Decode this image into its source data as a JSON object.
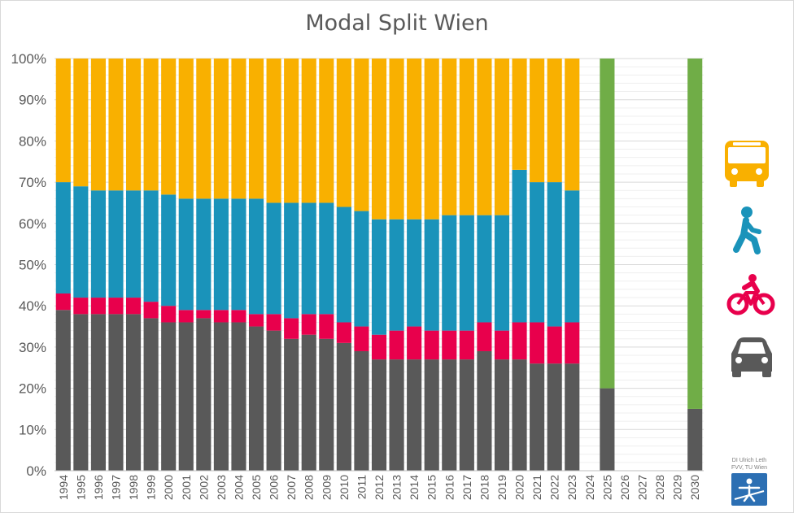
{
  "chart_data": {
    "type": "bar",
    "stacked": true,
    "title": "Modal Split Wien",
    "xlabel": "",
    "ylabel": "",
    "ylim": [
      0,
      100
    ],
    "yticks": [
      "0%",
      "10%",
      "20%",
      "30%",
      "40%",
      "50%",
      "60%",
      "70%",
      "80%",
      "90%",
      "100%"
    ],
    "grid": true,
    "legend": "right (icons)",
    "categories": [
      "1994",
      "1995",
      "1996",
      "1997",
      "1998",
      "1999",
      "2000",
      "2001",
      "2002",
      "2003",
      "2004",
      "2005",
      "2006",
      "2007",
      "2008",
      "2009",
      "2010",
      "2011",
      "2012",
      "2013",
      "2014",
      "2015",
      "2016",
      "2017",
      "2018",
      "2019",
      "2020",
      "2021",
      "2022",
      "2023",
      "2024",
      "2025",
      "2026",
      "2027",
      "2028",
      "2029",
      "2030"
    ],
    "series": [
      {
        "icon": "car-icon",
        "color": "#595959",
        "values": [
          39,
          38,
          38,
          38,
          38,
          37,
          36,
          36,
          37,
          36,
          36,
          35,
          34,
          32,
          33,
          32,
          31,
          29,
          27,
          27,
          27,
          27,
          27,
          27,
          29,
          27,
          27,
          26,
          26,
          26,
          null,
          20,
          null,
          null,
          null,
          null,
          15
        ]
      },
      {
        "icon": "bicycle-icon",
        "color": "#e8004c",
        "values": [
          4,
          4,
          4,
          4,
          4,
          4,
          4,
          3,
          2,
          3,
          3,
          3,
          4,
          5,
          5,
          6,
          5,
          6,
          6,
          7,
          8,
          7,
          7,
          7,
          7,
          7,
          9,
          10,
          9,
          10,
          null,
          null,
          null,
          null,
          null,
          null,
          null
        ]
      },
      {
        "icon": "pedestrian-icon",
        "color": "#1a93ba",
        "values": [
          27,
          27,
          26,
          26,
          26,
          27,
          27,
          27,
          27,
          27,
          27,
          28,
          27,
          28,
          27,
          27,
          28,
          28,
          28,
          27,
          26,
          27,
          28,
          28,
          26,
          28,
          37,
          34,
          35,
          32,
          null,
          null,
          null,
          null,
          null,
          null,
          null
        ]
      },
      {
        "icon": "bus-icon",
        "color": "#f9b000",
        "values": [
          30,
          31,
          32,
          32,
          32,
          32,
          33,
          34,
          34,
          34,
          34,
          34,
          35,
          35,
          35,
          35,
          36,
          37,
          39,
          39,
          39,
          39,
          38,
          38,
          38,
          38,
          27,
          30,
          30,
          32,
          null,
          null,
          null,
          null,
          null,
          null,
          null
        ]
      },
      {
        "name": "",
        "color": "#70ad47",
        "values": [
          null,
          null,
          null,
          null,
          null,
          null,
          null,
          null,
          null,
          null,
          null,
          null,
          null,
          null,
          null,
          null,
          null,
          null,
          null,
          null,
          null,
          null,
          null,
          null,
          null,
          null,
          null,
          null,
          null,
          null,
          null,
          80,
          null,
          null,
          null,
          null,
          85
        ]
      }
    ]
  },
  "legend_icons": [
    {
      "name": "bus-icon",
      "color": "#f9b000"
    },
    {
      "name": "pedestrian-icon",
      "color": "#1a93ba"
    },
    {
      "name": "bicycle-icon",
      "color": "#e8004c"
    },
    {
      "name": "car-icon",
      "color": "#595959"
    }
  ],
  "credit": {
    "line1": "DI Ulrich Leth",
    "line2": "FVV, TU Wien",
    "logo_color": "#2c6fb3"
  }
}
